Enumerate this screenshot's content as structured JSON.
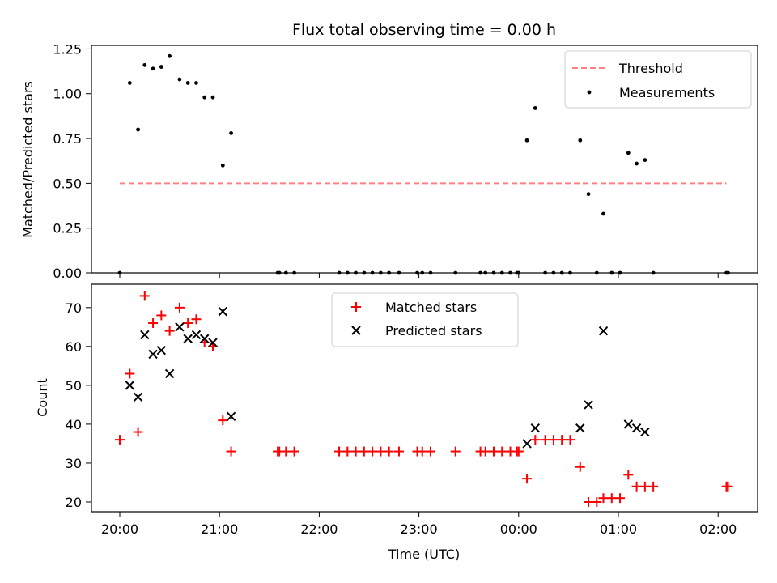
{
  "chart_data": [
    {
      "type": "scatter",
      "title": "Flux total observing time = 0.00 h",
      "ylabel": "Matched/Predicted stars",
      "xlabel": "",
      "ylim": [
        0,
        1.27
      ],
      "yticks": [
        "0.00",
        "0.25",
        "0.50",
        "0.75",
        "1.00",
        "1.25"
      ],
      "ytick_values": [
        0,
        0.25,
        0.5,
        0.75,
        1.0,
        1.25
      ],
      "legend_position": "upper right",
      "threshold": {
        "name": "Threshold",
        "value": 0.5,
        "x_start": "20:00",
        "x_end": "02:05",
        "color": "#ff8080"
      },
      "series": [
        {
          "name": "Measurements",
          "color": "#000000",
          "x": [
            "20:00",
            "20:06",
            "20:11",
            "20:15",
            "20:20",
            "20:25",
            "20:30",
            "20:36",
            "20:41",
            "20:46",
            "20:51",
            "20:56",
            "21:02",
            "21:07",
            "21:35",
            "21:36",
            "21:40",
            "21:45",
            "22:12",
            "22:17",
            "22:22",
            "22:27",
            "22:32",
            "22:37",
            "22:42",
            "22:48",
            "22:59",
            "23:02",
            "23:07",
            "23:22",
            "23:37",
            "23:40",
            "23:45",
            "23:50",
            "23:55",
            "23:59",
            "00:00",
            "00:05",
            "00:10",
            "00:16",
            "00:21",
            "00:26",
            "00:31",
            "00:37",
            "00:42",
            "00:47",
            "00:51",
            "00:56",
            "01:01",
            "01:06",
            "01:11",
            "01:16",
            "01:21",
            "02:05",
            "02:06"
          ],
          "y": [
            0.0,
            1.06,
            0.8,
            1.16,
            1.14,
            1.15,
            1.21,
            1.08,
            1.06,
            1.06,
            0.98,
            0.98,
            0.6,
            0.78,
            0.0,
            0.0,
            0.0,
            0.0,
            0.0,
            0.0,
            0.0,
            0.0,
            0.0,
            0.0,
            0.0,
            0.0,
            0.0,
            0.0,
            0.0,
            0.0,
            0.0,
            0.0,
            0.0,
            0.0,
            0.0,
            0.0,
            0.0,
            0.74,
            0.92,
            0.0,
            0.0,
            0.0,
            0.0,
            0.74,
            0.44,
            0.0,
            0.33,
            0.0,
            0.0,
            0.67,
            0.61,
            0.63,
            0.0,
            0.0,
            0.0
          ]
        }
      ]
    },
    {
      "type": "scatter",
      "title": "",
      "ylabel": "Count",
      "xlabel": "Time (UTC)",
      "ylim": [
        17.5,
        76
      ],
      "yticks": [
        "20",
        "30",
        "40",
        "50",
        "60",
        "70"
      ],
      "ytick_values": [
        20,
        30,
        40,
        50,
        60,
        70
      ],
      "xticks": [
        "20:00",
        "21:00",
        "22:00",
        "23:00",
        "00:00",
        "01:00",
        "02:00"
      ],
      "xlim": [
        "19:43",
        "02:23"
      ],
      "legend_position": "upper center",
      "series": [
        {
          "name": "Matched stars",
          "color": "#ff0000",
          "marker": "plus",
          "x": [
            "20:00",
            "20:06",
            "20:11",
            "20:15",
            "20:20",
            "20:25",
            "20:30",
            "20:36",
            "20:41",
            "20:46",
            "20:51",
            "20:56",
            "21:02",
            "21:07",
            "21:35",
            "21:36",
            "21:40",
            "21:45",
            "22:12",
            "22:17",
            "22:22",
            "22:27",
            "22:32",
            "22:37",
            "22:42",
            "22:48",
            "22:59",
            "23:02",
            "23:07",
            "23:22",
            "23:37",
            "23:40",
            "23:45",
            "23:50",
            "23:55",
            "23:59",
            "00:00",
            "00:05",
            "00:10",
            "00:16",
            "00:21",
            "00:26",
            "00:31",
            "00:37",
            "00:42",
            "00:47",
            "00:51",
            "00:56",
            "01:01",
            "01:06",
            "01:11",
            "01:16",
            "01:21",
            "02:05",
            "02:06"
          ],
          "y": [
            36,
            53,
            38,
            73,
            66,
            68,
            64,
            70,
            66,
            67,
            61,
            60,
            41,
            33,
            33,
            33,
            33,
            33,
            33,
            33,
            33,
            33,
            33,
            33,
            33,
            33,
            33,
            33,
            33,
            33,
            33,
            33,
            33,
            33,
            33,
            33,
            33,
            26,
            36,
            36,
            36,
            36,
            36,
            29,
            20,
            20,
            21,
            21,
            21,
            27,
            24,
            24,
            24,
            24,
            24
          ]
        },
        {
          "name": "Predicted stars",
          "color": "#000000",
          "marker": "x",
          "x": [
            "20:06",
            "20:11",
            "20:15",
            "20:20",
            "20:25",
            "20:30",
            "20:36",
            "20:41",
            "20:46",
            "20:51",
            "20:56",
            "21:02",
            "21:07",
            "00:05",
            "00:10",
            "00:37",
            "00:42",
            "00:51",
            "01:06",
            "01:11",
            "01:16"
          ],
          "y": [
            50,
            47,
            63,
            58,
            59,
            53,
            65,
            62,
            63,
            62,
            61,
            69,
            42,
            35,
            39,
            39,
            45,
            64,
            40,
            39,
            38
          ]
        }
      ]
    }
  ]
}
